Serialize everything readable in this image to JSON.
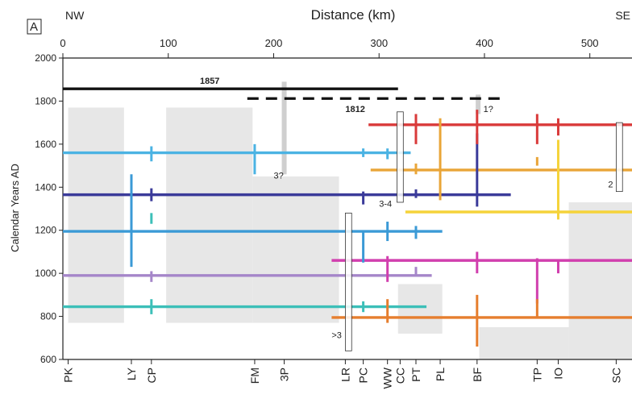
{
  "chart_data": {
    "type": "line",
    "panel_label": "A",
    "title": "Distance (km)",
    "dir_left": "NW",
    "dir_right": "SE",
    "ylabel": "Calendar Years AD",
    "xlim": [
      0,
      540
    ],
    "ylim": [
      600,
      2000
    ],
    "x_ticks": [
      0,
      100,
      200,
      300,
      400,
      500
    ],
    "y_ticks": [
      600,
      800,
      1000,
      1200,
      1400,
      1600,
      1800,
      2000
    ],
    "ruptures": [
      {
        "year": 1857,
        "x0": 0,
        "x1": 318,
        "color": "#111111",
        "dashed": false,
        "label": "1857",
        "label_x": 130
      },
      {
        "year": 1812,
        "x0": 175,
        "x1": 418,
        "color": "#111111",
        "dashed": true,
        "label": "1812",
        "label_x": 268
      },
      {
        "year": 1690,
        "x0": 290,
        "x1": 540,
        "color": "#d93a3a",
        "dashed": false
      },
      {
        "year": 1560,
        "x0": 0,
        "x1": 330,
        "color": "#4bb3e3",
        "dashed": false
      },
      {
        "year": 1480,
        "x0": 292,
        "x1": 540,
        "color": "#e9a538",
        "dashed": false
      },
      {
        "year": 1365,
        "x0": 0,
        "x1": 425,
        "color": "#3b3b9a",
        "dashed": false
      },
      {
        "year": 1285,
        "x0": 325,
        "x1": 540,
        "color": "#f5d33a",
        "dashed": false
      },
      {
        "year": 1195,
        "x0": 0,
        "x1": 360,
        "color": "#3b9ad6",
        "dashed": false
      },
      {
        "year": 1060,
        "x0": 255,
        "x1": 540,
        "color": "#d13fae",
        "dashed": false
      },
      {
        "year": 990,
        "x0": 0,
        "x1": 350,
        "color": "#a586c9",
        "dashed": false
      },
      {
        "year": 845,
        "x0": 0,
        "x1": 345,
        "color": "#3cbfb8",
        "dashed": false
      },
      {
        "year": 795,
        "x0": 255,
        "x1": 540,
        "color": "#e67e2e",
        "dashed": false
      }
    ],
    "event_ticks": [
      {
        "x": 65,
        "y0": 1030,
        "y1": 1460,
        "color": "#3b9ad6"
      },
      {
        "x": 84,
        "y0": 1520,
        "y1": 1590,
        "color": "#4bb3e3"
      },
      {
        "x": 84,
        "y0": 1335,
        "y1": 1395,
        "color": "#3b3b9a"
      },
      {
        "x": 84,
        "y0": 1230,
        "y1": 1280,
        "color": "#3cbfb8"
      },
      {
        "x": 84,
        "y0": 810,
        "y1": 880,
        "color": "#3cbfb8"
      },
      {
        "x": 84,
        "y0": 960,
        "y1": 1010,
        "color": "#a586c9"
      },
      {
        "x": 182,
        "y0": 1460,
        "y1": 1600,
        "color": "#4bb3e3"
      },
      {
        "x": 285,
        "y0": 1540,
        "y1": 1580,
        "color": "#4bb3e3"
      },
      {
        "x": 285,
        "y0": 1320,
        "y1": 1380,
        "color": "#3b3b9a"
      },
      {
        "x": 285,
        "y0": 1050,
        "y1": 1200,
        "color": "#3b9ad6"
      },
      {
        "x": 285,
        "y0": 820,
        "y1": 870,
        "color": "#3cbfb8"
      },
      {
        "x": 308,
        "y0": 1530,
        "y1": 1580,
        "color": "#4bb3e3"
      },
      {
        "x": 308,
        "y0": 1150,
        "y1": 1240,
        "color": "#3b9ad6"
      },
      {
        "x": 308,
        "y0": 770,
        "y1": 880,
        "color": "#e67e2e"
      },
      {
        "x": 308,
        "y0": 960,
        "y1": 1080,
        "color": "#d13fae"
      },
      {
        "x": 335,
        "y0": 1600,
        "y1": 1740,
        "color": "#d93a3a"
      },
      {
        "x": 335,
        "y0": 1460,
        "y1": 1510,
        "color": "#e9a538"
      },
      {
        "x": 335,
        "y0": 1350,
        "y1": 1390,
        "color": "#3b3b9a"
      },
      {
        "x": 335,
        "y0": 1160,
        "y1": 1220,
        "color": "#3b9ad6"
      },
      {
        "x": 335,
        "y0": 990,
        "y1": 1030,
        "color": "#a586c9"
      },
      {
        "x": 358,
        "y0": 1340,
        "y1": 1720,
        "color": "#e9a538"
      },
      {
        "x": 393,
        "y0": 1310,
        "y1": 1650,
        "color": "#3b3b9a"
      },
      {
        "x": 393,
        "y0": 1000,
        "y1": 1100,
        "color": "#d13fae"
      },
      {
        "x": 393,
        "y0": 660,
        "y1": 900,
        "color": "#e67e2e"
      },
      {
        "x": 393,
        "y0": 1600,
        "y1": 1760,
        "color": "#d93a3a"
      },
      {
        "x": 450,
        "y0": 1600,
        "y1": 1740,
        "color": "#d93a3a"
      },
      {
        "x": 450,
        "y0": 1500,
        "y1": 1540,
        "color": "#e9a538"
      },
      {
        "x": 450,
        "y0": 860,
        "y1": 1070,
        "color": "#d13fae"
      },
      {
        "x": 450,
        "y0": 790,
        "y1": 880,
        "color": "#e67e2e"
      },
      {
        "x": 470,
        "y0": 1250,
        "y1": 1620,
        "color": "#f5d33a"
      },
      {
        "x": 470,
        "y0": 1640,
        "y1": 1720,
        "color": "#d93a3a"
      },
      {
        "x": 470,
        "y0": 1000,
        "y1": 1060,
        "color": "#d13fae"
      }
    ],
    "gray_blocks": [
      {
        "x0": 5,
        "x1": 58,
        "y0": 770,
        "y1": 1770
      },
      {
        "x0": 98,
        "x1": 180,
        "y0": 770,
        "y1": 1770
      },
      {
        "x0": 180,
        "x1": 262,
        "y0": 770,
        "y1": 1450
      },
      {
        "x0": 318,
        "x1": 360,
        "y0": 720,
        "y1": 950
      },
      {
        "x0": 395,
        "x1": 480,
        "y0": 600,
        "y1": 750
      },
      {
        "x0": 480,
        "x1": 540,
        "y0": 600,
        "y1": 1330
      }
    ],
    "open_boxes": [
      {
        "x0": 268,
        "x1": 274,
        "y0": 640,
        "y1": 1280,
        "label": ">3",
        "label_x": 255,
        "label_y": 700,
        "label_anchor": "start"
      },
      {
        "x0": 317,
        "x1": 323,
        "y0": 1330,
        "y1": 1750,
        "label": "3-4",
        "label_x": 300,
        "label_y": 1310,
        "label_anchor": "start"
      },
      {
        "x0": 525,
        "x1": 531,
        "y0": 1380,
        "y1": 1700,
        "label": "2",
        "label_x": 522,
        "label_y": 1400,
        "label_anchor": "end"
      }
    ],
    "gray_bars": [
      {
        "x": 210,
        "y0": 1460,
        "y1": 1890,
        "label": "3?",
        "label_x": 200,
        "label_y": 1440
      },
      {
        "x": 394,
        "y0": 1740,
        "y1": 1830,
        "label": "1?",
        "label_x": 399,
        "label_y": 1750
      }
    ],
    "sites": [
      {
        "name": "PK",
        "x": 5
      },
      {
        "name": "LY",
        "x": 65
      },
      {
        "name": "CP",
        "x": 84
      },
      {
        "name": "FM",
        "x": 182
      },
      {
        "name": "3P",
        "x": 210
      },
      {
        "name": "LR",
        "x": 268
      },
      {
        "name": "PC",
        "x": 285
      },
      {
        "name": "WW",
        "x": 308
      },
      {
        "name": "CC",
        "x": 320
      },
      {
        "name": "PT",
        "x": 335
      },
      {
        "name": "PL",
        "x": 358
      },
      {
        "name": "BF",
        "x": 393
      },
      {
        "name": "TP",
        "x": 450
      },
      {
        "name": "IO",
        "x": 470
      },
      {
        "name": "SC",
        "x": 525
      }
    ]
  }
}
